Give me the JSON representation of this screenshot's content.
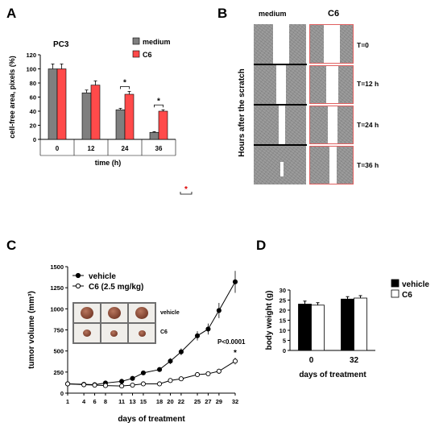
{
  "panels": {
    "A": "A",
    "B": "B",
    "C": "C",
    "D": "D"
  },
  "colors": {
    "medium": "#7f7f7f",
    "C6": "#ff4a4a",
    "vehicle_bar": "#000000",
    "C6_bar": "#ffffff",
    "micro": "#a0a0a0",
    "c6_border": "#e06060"
  },
  "chart_data": [
    {
      "panel": "A",
      "type": "bar",
      "title": "PC3",
      "xlabel": "time (h)",
      "ylabel": "cell-free area, pixels (%)",
      "categories": [
        "0",
        "12",
        "24",
        "36"
      ],
      "ylim": [
        0,
        120
      ],
      "yticks": [
        0,
        20,
        40,
        60,
        80,
        100,
        120
      ],
      "series": [
        {
          "name": "medium",
          "values": [
            100,
            66,
            42,
            10
          ],
          "errors": [
            7,
            4,
            2,
            1
          ]
        },
        {
          "name": "C6",
          "values": [
            100,
            77,
            64,
            40
          ],
          "errors": [
            7,
            6,
            4,
            2
          ]
        }
      ],
      "significance": [
        {
          "category": "24",
          "label": "*"
        },
        {
          "category": "36",
          "label": "*"
        }
      ],
      "stray_mark": "*",
      "legend": "top-right"
    },
    {
      "panel": "C",
      "type": "line",
      "xlabel": "days of treatment",
      "ylabel": "tumor volume (mm³)",
      "x": [
        1,
        4,
        6,
        8,
        11,
        13,
        15,
        18,
        20,
        22,
        25,
        27,
        29,
        32
      ],
      "xticks": [
        1,
        4,
        6,
        8,
        11,
        13,
        15,
        18,
        20,
        22,
        25,
        27,
        29,
        32
      ],
      "ylim": [
        0,
        1500
      ],
      "yticks": [
        0,
        250,
        500,
        750,
        1000,
        1250,
        1500
      ],
      "series": [
        {
          "name": "vehicle",
          "marker": "filled",
          "values": [
            110,
            105,
            100,
            120,
            140,
            175,
            240,
            280,
            380,
            490,
            680,
            760,
            980,
            1320
          ],
          "errors": [
            15,
            15,
            15,
            15,
            15,
            20,
            25,
            25,
            35,
            40,
            55,
            65,
            90,
            130
          ]
        },
        {
          "name": "C6 (2.5 mg/kg)",
          "marker": "open",
          "values": [
            110,
            100,
            95,
            90,
            85,
            95,
            110,
            110,
            150,
            170,
            220,
            230,
            260,
            380
          ],
          "errors": [
            12,
            12,
            12,
            12,
            12,
            12,
            15,
            15,
            20,
            20,
            25,
            25,
            30,
            40
          ]
        }
      ],
      "annotation_p": "P<0.0001",
      "annotation_star": "*",
      "inset_labels": [
        "vehicle",
        "C6"
      ],
      "legend": "top-left"
    },
    {
      "panel": "D",
      "type": "bar",
      "xlabel": "days of treatment",
      "ylabel": "body weight (g)",
      "categories": [
        "0",
        "32"
      ],
      "ylim": [
        0,
        30
      ],
      "yticks": [
        0,
        5,
        10,
        15,
        20,
        25,
        30
      ],
      "series": [
        {
          "name": "vehicle",
          "values": [
            23,
            25.5
          ],
          "errors": [
            1.5,
            1.2
          ]
        },
        {
          "name": "C6",
          "values": [
            22.5,
            26
          ],
          "errors": [
            1.2,
            1.2
          ]
        }
      ],
      "legend": "top-right"
    }
  ],
  "panel_B": {
    "col_labels": [
      "medium",
      "C6"
    ],
    "row_labels": [
      "T=0",
      "T=12 h",
      "T=24 h",
      "T=36 h"
    ],
    "side_label": "Hours after the scratch"
  }
}
